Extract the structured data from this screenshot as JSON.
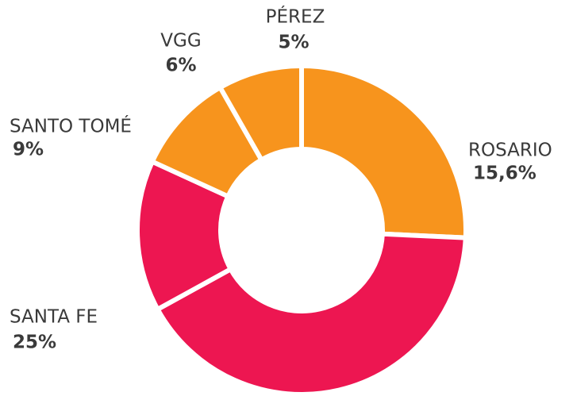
{
  "chart_data": {
    "type": "donut",
    "categories": [
      "ROSARIO",
      "SANTA FE",
      "SANTO TOMÉ",
      "VGG",
      "PÉREZ"
    ],
    "values": [
      15.6,
      25,
      9,
      6,
      5
    ],
    "value_labels": [
      "15,6%",
      "25%",
      "9%",
      "6%",
      "5%"
    ],
    "colors": [
      "#f7941d",
      "#ed1651",
      "#ed1651",
      "#f7941d",
      "#f7941d"
    ]
  }
}
